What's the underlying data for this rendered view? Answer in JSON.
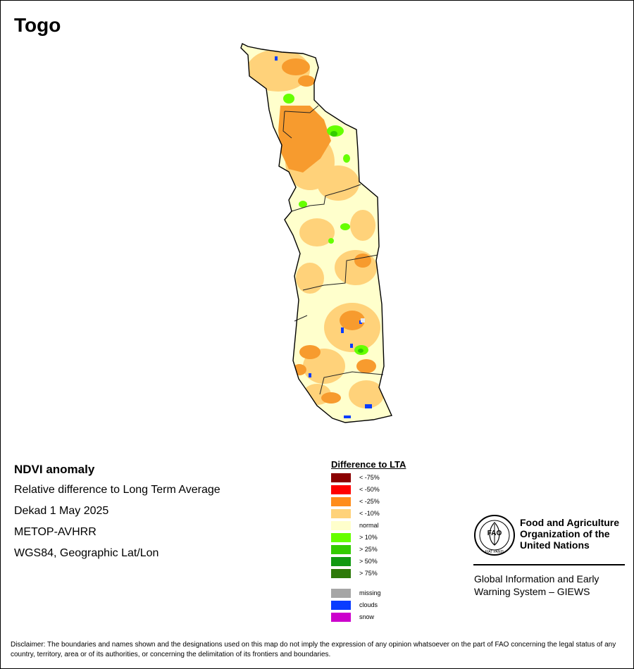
{
  "title": "Togo",
  "info_lines": [
    "NDVI anomaly",
    "Relative difference to Long Term Average",
    "Dekad 1 May 2025",
    "METOP-AVHRR",
    "WGS84, Geographic Lat/Lon"
  ],
  "legend": {
    "title": "Difference to LTA",
    "items": [
      {
        "label": "< -75%",
        "color": "#8b0000"
      },
      {
        "label": "< -50%",
        "color": "#ff0000"
      },
      {
        "label": "< -25%",
        "color": "#ff8c1a"
      },
      {
        "label": "< -10%",
        "color": "#ffd27a"
      },
      {
        "label": "normal",
        "color": "#ffffcc"
      },
      {
        "label": "> 10%",
        "color": "#66ff00"
      },
      {
        "label": "> 25%",
        "color": "#33cc00"
      },
      {
        "label": "> 50%",
        "color": "#119911"
      },
      {
        "label": "> 75%",
        "color": "#2e7a0a"
      }
    ],
    "extra": [
      {
        "label": "missing",
        "color": "#a6a6a6"
      },
      {
        "label": "clouds",
        "color": "#0a3cff"
      },
      {
        "label": "snow",
        "color": "#cc00cc"
      }
    ]
  },
  "organization": {
    "logo_text": "FAO",
    "logo_motto": "FIAT PANIS",
    "name_lines": [
      "Food and Agriculture",
      "Organization of the",
      "United Nations"
    ],
    "system_lines": [
      "Global Information and Early",
      "Warning System – GIEWS"
    ]
  },
  "disclaimer": "Disclaimer: The boundaries and names shown and the designations used on this map do not imply the expression of any opinion whatsoever on the part of FAO concerning the legal status of any country, territory, area or of its authorities, or concerning the delimitation of its frontiers and boundaries."
}
